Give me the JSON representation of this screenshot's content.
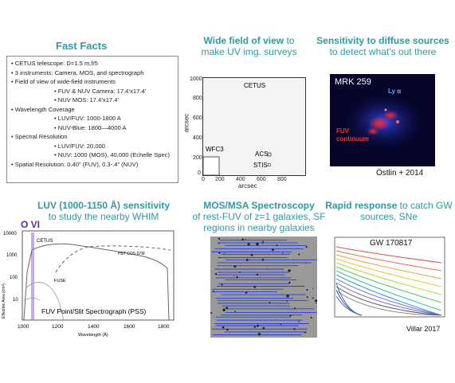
{
  "facts": {
    "title": "Fast Facts",
    "lines": [
      "CETUS telescope: D=1.5 m,f/5",
      "3 instruments: Camera, MOS, and spectrograph",
      "Field of view of wide-field instruments",
      "FUV & NUV Camera: 17.4’x17.4’",
      "NUV MOS: 17.4’x17.4’",
      "Wavelength Coverage",
      "LUV/FUV: 1000-1800 A",
      "NUV-Blue: 1800—4000 A",
      "Spectral Resolution",
      "LUV/FUV: 20,000",
      "NUV: 1000 (MOS), 40,000 (Echelle Spec)",
      "Spatial Resolution: 0.40” (FUV), 0.3-.4” (NUV)"
    ]
  },
  "wide_field": {
    "title_bold": "Wide field of view",
    "title_rest": " to make UV img. surveys",
    "labels": {
      "cetus": "CETUS",
      "wfc3": "WFC3",
      "acs": "ACS",
      "stis": "STIS"
    },
    "xlabel": "arcsec",
    "ylabel": "arcsec",
    "ticks": [
      "0",
      "200",
      "400",
      "600",
      "800",
      "1000"
    ]
  },
  "sensitivity": {
    "title_bold": "Sensitivity to diffuse sources",
    "title_rest": "to detect what’s out there",
    "image_label": "MRK 259",
    "lya": "Ly α",
    "fuv": "FUV",
    "continuum": "continuum",
    "credit": "Östlin + 2014"
  },
  "luv": {
    "title_bold": "LUV (1000-1150 Å) sensitivity",
    "title_rest": "to study the nearby WHIM",
    "ovi": "O VI",
    "cetus": "CETUS",
    "hst": "HST COS G*M",
    "fuse": "FUSE",
    "caption": "FUV Point/Slit Spectrograph (PSS)",
    "xlabel": "Wavelength (Å)",
    "ylabel": "Effective Area (cm²)",
    "yticks": [
      "10000",
      "1000",
      "100",
      "10"
    ],
    "xticks": [
      "1000",
      "1200",
      "1400",
      "1600",
      "1800"
    ]
  },
  "mos": {
    "title_bold": "MOS/MSA Spectroscopy",
    "title_rest": "of rest-FUV of z=1 galaxies, SF regions in nearby galaxies"
  },
  "rapid": {
    "title_bold": "Rapid response",
    "title_rest": " to catch GW sources, SNe",
    "event": "GW 170817",
    "credit": "Villar 2017"
  }
}
